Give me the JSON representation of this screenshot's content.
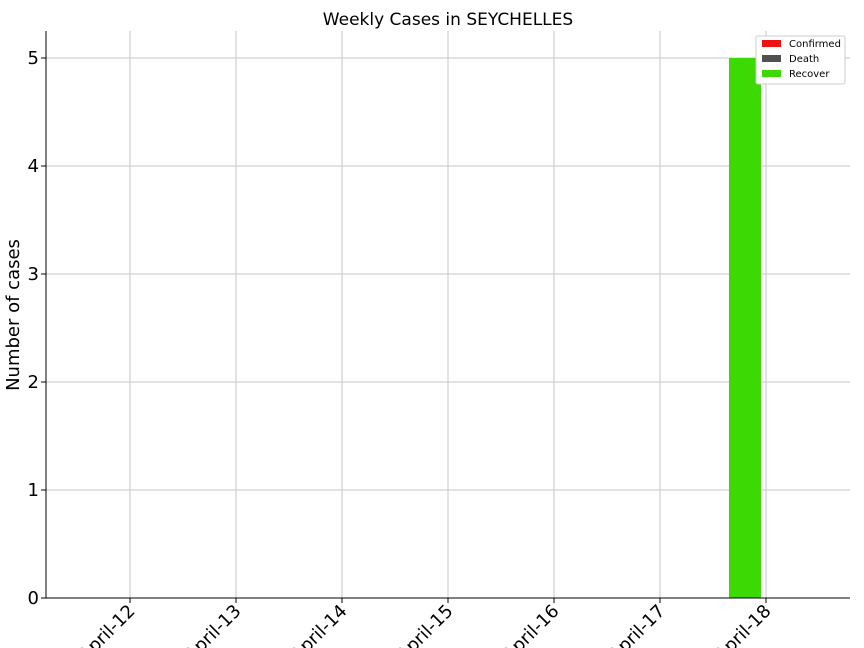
{
  "chart_data": {
    "type": "bar",
    "title": "Weekly Cases in SEYCHELLES",
    "xlabel": "",
    "ylabel": "Number of cases",
    "categories": [
      "April-12",
      "April-13",
      "April-14",
      "April-15",
      "April-16",
      "April-17",
      "April-18"
    ],
    "series": [
      {
        "name": "Confirmed",
        "color": "#ee1111",
        "values": [
          0,
          0,
          0,
          0,
          0,
          0,
          0
        ]
      },
      {
        "name": "Death",
        "color": "#505050",
        "values": [
          0,
          0,
          0,
          0,
          0,
          0,
          0
        ]
      },
      {
        "name": "Recover",
        "color": "#3cd904",
        "values": [
          0,
          0,
          0,
          0,
          0,
          5,
          0
        ]
      }
    ],
    "ylim": [
      0,
      5.25
    ],
    "yticks": [
      0,
      1,
      2,
      3,
      4,
      5
    ],
    "grid": true,
    "legend_position": "top-right"
  }
}
